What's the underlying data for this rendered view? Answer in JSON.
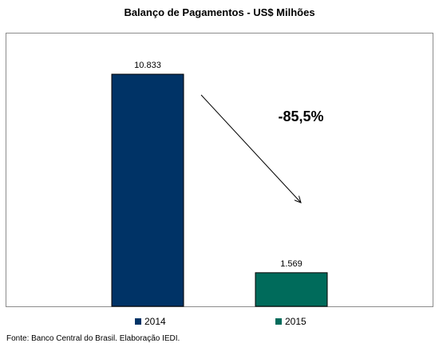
{
  "chart_data": {
    "type": "bar",
    "title": "Balanço de Pagamentos - US$ Milhões",
    "categories": [
      "2014",
      "2015"
    ],
    "values": [
      10833,
      1569
    ],
    "value_labels": [
      "10.833",
      "1.569"
    ],
    "colors": [
      "#003366",
      "#006b5b"
    ],
    "ylim": [
      0,
      12100
    ],
    "grid": false,
    "legend": {
      "placement": "bottom",
      "entries": [
        "2014",
        "2015"
      ]
    },
    "annotation": {
      "text": "-85,5%",
      "arrow": "down-right from first bar toward second bar"
    },
    "source": "Fonte: Banco Central do Brasil. Elaboração IEDI."
  }
}
